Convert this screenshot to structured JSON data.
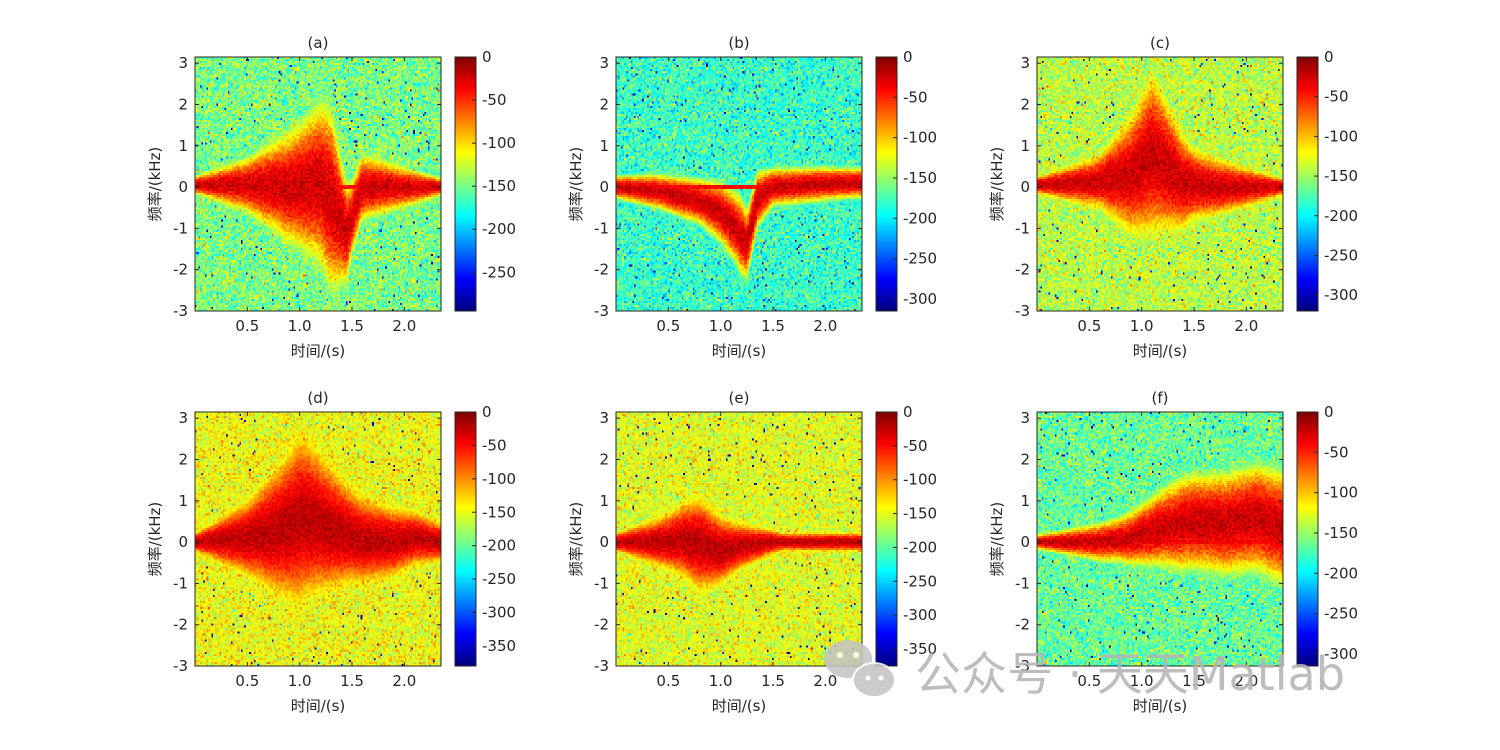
{
  "figure": {
    "watermark": {
      "text": "公众号 · 天天Matlab",
      "icon": "wechat-icon"
    }
  },
  "chart_data": [
    {
      "type": "heatmap",
      "title": "(a)",
      "xlabel": "时间/(s)",
      "ylabel": "频率/(kHz)",
      "xlim": [
        0,
        2.35
      ],
      "ylim": [
        -3,
        3.15
      ],
      "x_ticks": [
        0.5,
        1.0,
        1.5,
        2.0
      ],
      "x_tick_labels": [
        "0.5",
        "1.0",
        "1.5",
        "2.0"
      ],
      "y_ticks": [
        -3,
        -2,
        -1,
        0,
        1,
        2,
        3
      ],
      "y_tick_labels": [
        "-3",
        "-2",
        "-1",
        "0",
        "1",
        "2",
        "3"
      ],
      "colorbar": {
        "colormap": "jet",
        "range": [
          -295,
          0
        ],
        "ticks": [
          0,
          -50,
          -100,
          -150,
          -200,
          -250
        ],
        "tick_labels": [
          "0",
          "-50",
          "-100",
          "-150",
          "-200",
          "-250"
        ]
      },
      "noise_level_db": -148,
      "signal": {
        "trend": [
          [
            0.0,
            0.05
          ],
          [
            0.5,
            0.05
          ],
          [
            0.9,
            0.0
          ],
          [
            1.2,
            0.1
          ],
          [
            1.3,
            -0.3
          ],
          [
            1.45,
            -1.1
          ],
          [
            1.6,
            0.0
          ],
          [
            2.35,
            0.0
          ]
        ],
        "spread": [
          [
            0.0,
            0.05
          ],
          [
            0.5,
            0.15
          ],
          [
            1.0,
            0.35
          ],
          [
            1.3,
            0.5
          ],
          [
            1.5,
            0.2
          ],
          [
            2.35,
            0.05
          ]
        ]
      }
    },
    {
      "type": "heatmap",
      "title": "(b)",
      "xlabel": "时间/(s)",
      "ylabel": "频率/(kHz)",
      "xlim": [
        0,
        2.35
      ],
      "ylim": [
        -3,
        3.15
      ],
      "x_ticks": [
        0.5,
        1.0,
        1.5,
        2.0
      ],
      "x_tick_labels": [
        "0.5",
        "1.0",
        "1.5",
        "2.0"
      ],
      "y_ticks": [
        -3,
        -2,
        -1,
        0,
        1,
        2,
        3
      ],
      "y_tick_labels": [
        "-3",
        "-2",
        "-1",
        "0",
        "1",
        "2",
        "3"
      ],
      "colorbar": {
        "colormap": "jet",
        "range": [
          -315,
          0
        ],
        "ticks": [
          0,
          -50,
          -100,
          -150,
          -200,
          -250,
          -300
        ],
        "tick_labels": [
          "0",
          "-50",
          "-100",
          "-150",
          "-200",
          "-250",
          "-300"
        ]
      },
      "noise_level_db": -180,
      "signal": {
        "trend": [
          [
            0.0,
            0.0
          ],
          [
            0.4,
            -0.1
          ],
          [
            0.8,
            -0.35
          ],
          [
            1.0,
            -0.6
          ],
          [
            1.15,
            -1.0
          ],
          [
            1.25,
            -1.4
          ],
          [
            1.35,
            -0.3
          ],
          [
            1.5,
            0.0
          ],
          [
            2.0,
            0.08
          ],
          [
            2.35,
            0.1
          ]
        ],
        "spread": [
          [
            0.0,
            0.06
          ],
          [
            0.8,
            0.12
          ],
          [
            1.2,
            0.2
          ],
          [
            1.5,
            0.1
          ],
          [
            2.35,
            0.08
          ]
        ]
      }
    },
    {
      "type": "heatmap",
      "title": "(c)",
      "xlabel": "时间/(s)",
      "ylabel": "频率/(kHz)",
      "xlim": [
        0,
        2.35
      ],
      "ylim": [
        -3,
        3.15
      ],
      "x_ticks": [
        0.5,
        1.0,
        1.5,
        2.0
      ],
      "x_tick_labels": [
        "0.5",
        "1.0",
        "1.5",
        "2.0"
      ],
      "y_ticks": [
        -3,
        -2,
        -1,
        0,
        1,
        2,
        3
      ],
      "y_tick_labels": [
        "-3",
        "-2",
        "-1",
        "0",
        "1",
        "2",
        "3"
      ],
      "colorbar": {
        "colormap": "jet",
        "range": [
          -320,
          0
        ],
        "ticks": [
          0,
          -50,
          -100,
          -150,
          -200,
          -250,
          -300
        ],
        "tick_labels": [
          "0",
          "-50",
          "-100",
          "-150",
          "-200",
          "-250",
          "-300"
        ]
      },
      "noise_level_db": -140,
      "signal": {
        "trend": [
          [
            0.0,
            0.05
          ],
          [
            0.5,
            0.1
          ],
          [
            0.9,
            0.3
          ],
          [
            1.1,
            0.8
          ],
          [
            1.2,
            0.6
          ],
          [
            1.4,
            0.1
          ],
          [
            1.7,
            0.0
          ],
          [
            2.35,
            0.0
          ]
        ],
        "spread": [
          [
            0.0,
            0.05
          ],
          [
            0.6,
            0.15
          ],
          [
            1.1,
            0.45
          ],
          [
            1.5,
            0.2
          ],
          [
            2.35,
            0.05
          ]
        ]
      }
    },
    {
      "type": "heatmap",
      "title": "(d)",
      "xlabel": "时间/(s)",
      "ylabel": "频率/(kHz)",
      "xlim": [
        0,
        2.35
      ],
      "ylim": [
        -3,
        3.15
      ],
      "x_ticks": [
        0.5,
        1.0,
        1.5,
        2.0
      ],
      "x_tick_labels": [
        "0.5",
        "1.0",
        "1.5",
        "2.0"
      ],
      "y_ticks": [
        -3,
        -2,
        -1,
        0,
        1,
        2,
        3
      ],
      "y_tick_labels": [
        "-3",
        "-2",
        "-1",
        "0",
        "1",
        "2",
        "3"
      ],
      "colorbar": {
        "colormap": "jet",
        "range": [
          -380,
          0
        ],
        "ticks": [
          0,
          -50,
          -100,
          -150,
          -200,
          -250,
          -300,
          -350
        ],
        "tick_labels": [
          "0",
          "-50",
          "-100",
          "-150",
          "-200",
          "-250",
          "-300",
          "-350"
        ]
      },
      "noise_level_db": -145,
      "signal": {
        "trend": [
          [
            0.0,
            0.0
          ],
          [
            0.5,
            0.1
          ],
          [
            0.8,
            0.3
          ],
          [
            1.05,
            0.6
          ],
          [
            1.3,
            0.35
          ],
          [
            1.6,
            0.05
          ],
          [
            1.9,
            0.0
          ],
          [
            2.1,
            0.1
          ],
          [
            2.35,
            0.0
          ]
        ],
        "spread": [
          [
            0.0,
            0.05
          ],
          [
            0.5,
            0.2
          ],
          [
            1.0,
            0.45
          ],
          [
            1.5,
            0.25
          ],
          [
            2.35,
            0.1
          ]
        ]
      }
    },
    {
      "type": "heatmap",
      "title": "(e)",
      "xlabel": "时间/(s)",
      "ylabel": "频率/(kHz)",
      "xlim": [
        0,
        2.35
      ],
      "ylim": [
        -3,
        3.15
      ],
      "x_ticks": [
        0.5,
        1.0,
        1.5,
        2.0
      ],
      "x_tick_labels": [
        "0.5",
        "1.0",
        "1.5",
        "2.0"
      ],
      "y_ticks": [
        -3,
        -2,
        -1,
        0,
        1,
        2,
        3
      ],
      "y_tick_labels": [
        "-3",
        "-2",
        "-1",
        "0",
        "1",
        "2",
        "3"
      ],
      "colorbar": {
        "colormap": "jet",
        "range": [
          -375,
          0
        ],
        "ticks": [
          0,
          -50,
          -100,
          -150,
          -200,
          -250,
          -300,
          -350
        ],
        "tick_labels": [
          "0",
          "-50",
          "-100",
          "-150",
          "-200",
          "-250",
          "-300",
          "-350"
        ]
      },
      "noise_level_db": -150,
      "signal": {
        "trend": [
          [
            0.0,
            0.0
          ],
          [
            0.4,
            0.0
          ],
          [
            0.65,
            0.05
          ],
          [
            0.8,
            -0.05
          ],
          [
            1.0,
            -0.2
          ],
          [
            1.2,
            -0.1
          ],
          [
            1.5,
            0.0
          ],
          [
            2.35,
            0.0
          ]
        ],
        "spread": [
          [
            0.0,
            0.05
          ],
          [
            0.5,
            0.15
          ],
          [
            0.8,
            0.25
          ],
          [
            1.2,
            0.12
          ],
          [
            1.6,
            0.05
          ],
          [
            2.35,
            0.05
          ]
        ]
      }
    },
    {
      "type": "heatmap",
      "title": "(f)",
      "xlabel": "时间/(s)",
      "ylabel": "频率/(kHz)",
      "xlim": [
        0,
        2.35
      ],
      "ylim": [
        -3,
        3.15
      ],
      "x_ticks": [
        0.5,
        1.0,
        1.5,
        2.0
      ],
      "x_tick_labels": [
        "0.5",
        "1.0",
        "1.5",
        "2.0"
      ],
      "y_ticks": [
        -3,
        -2,
        -1,
        0,
        1,
        2,
        3
      ],
      "y_tick_labels": [
        "-3",
        "-2",
        "-1",
        "0",
        "1",
        "2",
        "3"
      ],
      "colorbar": {
        "colormap": "jet",
        "range": [
          -315,
          0
        ],
        "ticks": [
          0,
          -50,
          -100,
          -150,
          -200,
          -250,
          -300
        ],
        "tick_labels": [
          "0",
          "-50",
          "-100",
          "-150",
          "-200",
          "-250",
          "-300"
        ]
      },
      "noise_level_db": -165,
      "signal": {
        "trend": [
          [
            0.0,
            0.0
          ],
          [
            0.6,
            0.0
          ],
          [
            0.9,
            0.1
          ],
          [
            1.2,
            0.35
          ],
          [
            1.5,
            0.5
          ],
          [
            1.8,
            0.45
          ],
          [
            2.1,
            0.6
          ],
          [
            2.35,
            0.35
          ]
        ],
        "spread": [
          [
            0.0,
            0.04
          ],
          [
            0.8,
            0.12
          ],
          [
            1.4,
            0.25
          ],
          [
            2.35,
            0.3
          ]
        ]
      }
    }
  ]
}
